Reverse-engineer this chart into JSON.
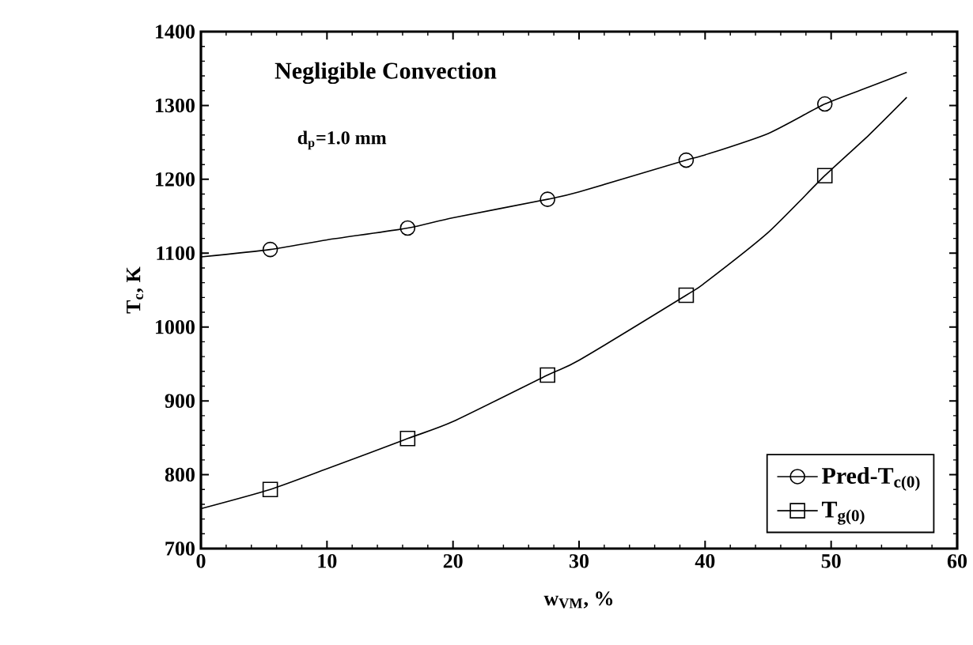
{
  "chart_data": {
    "type": "line",
    "xlabel": "w$_{VM}$, %",
    "ylabel": "T$_{c}$, K",
    "annotations": [
      "Negligible Convection",
      "d$_{p}$=1.0 mm"
    ],
    "series": [
      {
        "color": "#000000",
        "x": [
          0,
          5.5,
          10,
          16.4,
          20,
          27.5,
          30,
          38.5,
          40,
          45,
          49.5,
          53,
          56
        ],
        "values": [
          1095,
          1105,
          1118,
          1134,
          1148,
          1173,
          1183,
          1226,
          1233,
          1262,
          1302,
          1325,
          1345
        ]
      },
      {
        "type": "scatter",
        "name": "Pred-T$_{c(0)}$",
        "color": "#000000",
        "marker": "circle",
        "x": [
          5.5,
          16.4,
          27.5,
          38.5,
          49.5
        ],
        "values": [
          1105,
          1134,
          1173,
          1226,
          1302
        ]
      },
      {
        "color": "#000000",
        "x": [
          0,
          5.5,
          10,
          16.4,
          20,
          27.5,
          30,
          38.5,
          40,
          45,
          49.5,
          53,
          56
        ],
        "values": [
          754,
          780,
          808,
          849,
          872,
          935,
          955,
          1043,
          1060,
          1128,
          1205,
          1260,
          1311
        ]
      },
      {
        "type": "scatter",
        "name": "T$_{g(0)}$",
        "color": "#000000",
        "marker": "square",
        "x": [
          5.5,
          16.4,
          27.5,
          38.5,
          49.5
        ],
        "values": [
          780,
          849,
          935,
          1043,
          1205
        ]
      }
    ],
    "xlim": [
      0,
      60
    ],
    "xticks": [
      0,
      10,
      20,
      30,
      40,
      50,
      60
    ],
    "ylim": [
      700,
      1400
    ],
    "yticks": [
      700,
      800,
      900,
      1000,
      1100,
      1200,
      1300,
      1400
    ],
    "legend": "bottom right"
  }
}
